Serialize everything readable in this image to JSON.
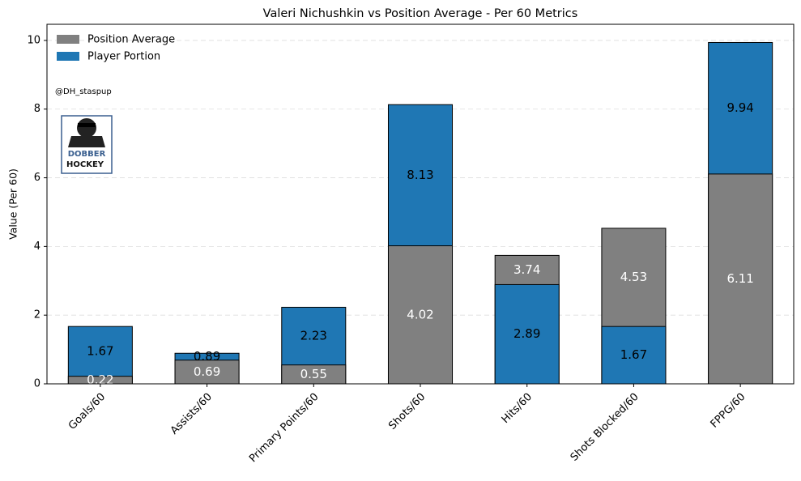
{
  "chart_data": {
    "type": "overlap_bar",
    "title": "Valeri Nichushkin vs Position Average - Per 60 Metrics",
    "ylabel": "Value (Per 60)",
    "annotation": "@DH_staspup",
    "logo_text": [
      "DOBBER",
      "HOCKEY"
    ],
    "categories": [
      "Goals/60",
      "Assists/60",
      "Primary Points/60",
      "Shots/60",
      "Hits/60",
      "Shots Blocked/60",
      "FPPG/60"
    ],
    "series": [
      {
        "name": "Position Average",
        "color": "#808080",
        "label_color": "#ffffff",
        "values": [
          0.22,
          0.69,
          0.55,
          4.02,
          3.74,
          4.53,
          6.11
        ]
      },
      {
        "name": "Player Portion",
        "color": "#1f77b4",
        "label_color": "#000000",
        "values": [
          1.67,
          0.89,
          2.23,
          8.13,
          2.89,
          1.67,
          9.94
        ]
      }
    ],
    "ylim": [
      0,
      10.47
    ],
    "yticks": [
      0,
      2,
      4,
      6,
      8,
      10
    ],
    "grid": true,
    "legend": "upper left"
  }
}
